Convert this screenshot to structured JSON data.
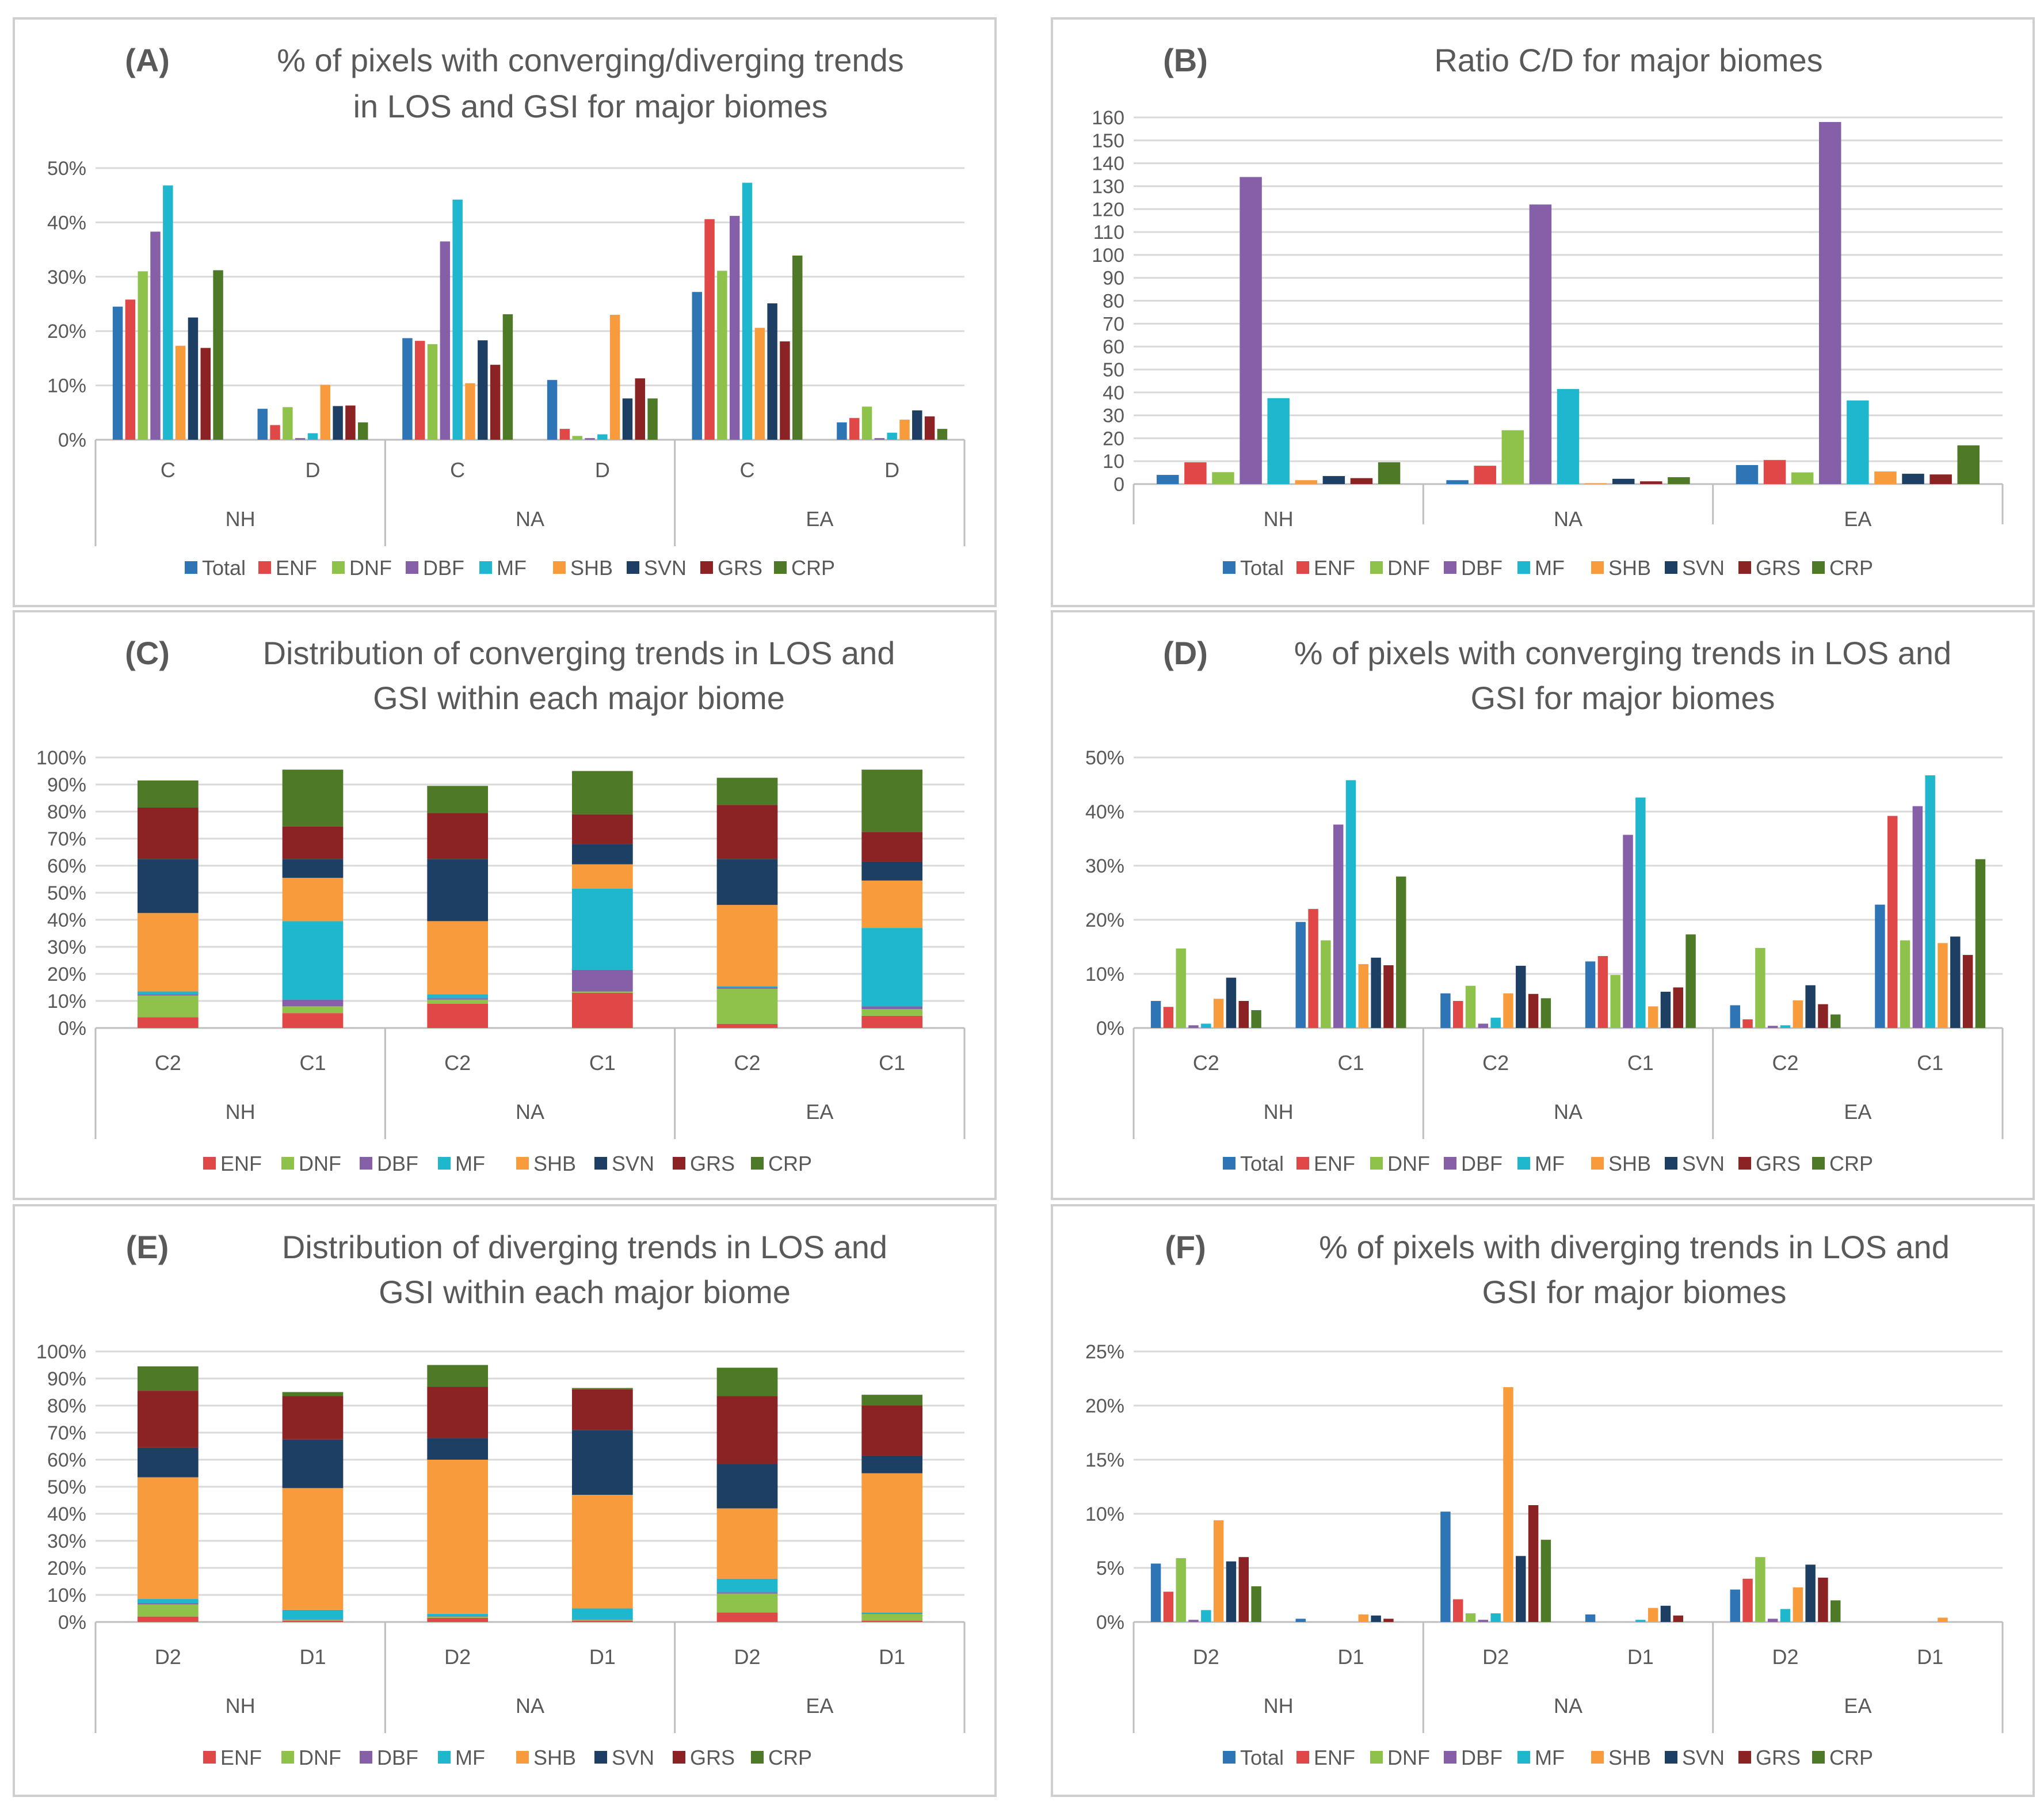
{
  "colors": {
    "Total": "#2e75b6",
    "ENF": "#e04848",
    "DNF": "#8ec24b",
    "DBF": "#8560a8",
    "MF": "#1fb7cd",
    "SHB": "#f79b3c",
    "SVN": "#1d3f63",
    "GRS": "#8b2324",
    "CRP": "#4e7a28"
  },
  "chart_data": [
    {
      "panel": "A",
      "type": "bar",
      "title_letter": "(A)",
      "title_lines": [
        "% of pixels with converging/diverging trends",
        "in LOS and GSI for major biomes"
      ],
      "ylim": [
        0,
        50
      ],
      "yticks": [
        0,
        10,
        20,
        30,
        40,
        50
      ],
      "tick_suffix": "%",
      "groups": [
        "NH",
        "NA",
        "EA"
      ],
      "subgroups": [
        "C",
        "D"
      ],
      "series_names": [
        "Total",
        "ENF",
        "DNF",
        "DBF",
        "MF",
        "SHB",
        "SVN",
        "GRS",
        "CRP"
      ],
      "values": [
        [
          24.5,
          25.8,
          31,
          38.3,
          46.8,
          17.3,
          22.5,
          16.9,
          31.2
        ],
        [
          5.7,
          2.7,
          6,
          0.3,
          1.2,
          10.1,
          6.2,
          6.3,
          3.2
        ],
        [
          18.7,
          18.2,
          17.6,
          36.5,
          44.2,
          10.4,
          18.3,
          13.8,
          23.1
        ],
        [
          11,
          2,
          0.7,
          0.3,
          1,
          23,
          7.6,
          11.3,
          7.6
        ],
        [
          27.2,
          40.6,
          31.1,
          41.2,
          47.3,
          20.6,
          25.1,
          18.1,
          33.9
        ],
        [
          3.2,
          4,
          6.1,
          0.3,
          1.3,
          3.7,
          5.4,
          4.3,
          2
        ]
      ]
    },
    {
      "panel": "B",
      "type": "bar",
      "title_letter": "(B)",
      "title_lines": [
        "Ratio C/D for major biomes"
      ],
      "ylim": [
        0,
        160
      ],
      "yticks": [
        0,
        10,
        20,
        30,
        40,
        50,
        60,
        70,
        80,
        90,
        100,
        110,
        120,
        130,
        140,
        150,
        160
      ],
      "tick_suffix": "",
      "groups": [
        "NH",
        "NA",
        "EA"
      ],
      "subgroups": [
        ""
      ],
      "series_names": [
        "Total",
        "ENF",
        "DNF",
        "DBF",
        "MF",
        "SHB",
        "SVN",
        "GRS",
        "CRP"
      ],
      "values": [
        [
          4,
          9.5,
          5.2,
          134,
          37.5,
          1.7,
          3.5,
          2.6,
          9.5
        ],
        [
          1.7,
          8,
          23.5,
          122,
          41.5,
          0.4,
          2.3,
          1.2,
          3
        ],
        [
          8.3,
          10.5,
          5.1,
          158,
          36.5,
          5.5,
          4.5,
          4.2,
          16.9
        ]
      ]
    },
    {
      "panel": "C",
      "type": "stacked-bar",
      "title_letter": "(C)",
      "title_lines": [
        "Distribution of converging trends in LOS and",
        "GSI within each major biome"
      ],
      "ylim": [
        0,
        100
      ],
      "yticks": [
        0,
        10,
        20,
        30,
        40,
        50,
        60,
        70,
        80,
        90,
        100
      ],
      "tick_suffix": "%",
      "groups": [
        "NH",
        "NA",
        "EA"
      ],
      "subgroups": [
        "C2",
        "C1"
      ],
      "series_names": [
        "ENF",
        "DNF",
        "DBF",
        "MF",
        "SHB",
        "SVN",
        "GRS",
        "CRP"
      ],
      "values": [
        [
          4,
          8,
          0.5,
          1,
          29,
          20,
          19,
          10
        ],
        [
          5.5,
          2.5,
          2.5,
          29,
          16,
          7,
          12,
          21
        ],
        [
          9,
          1.5,
          0.5,
          1.5,
          27,
          23,
          17,
          10
        ],
        [
          13,
          0.5,
          8,
          30,
          9,
          7.5,
          11,
          16
        ],
        [
          1.5,
          13,
          0.5,
          0.5,
          30,
          17,
          20,
          10
        ],
        [
          4.5,
          2.5,
          1,
          29,
          17.5,
          7,
          11,
          23
        ]
      ]
    },
    {
      "panel": "D",
      "type": "bar",
      "title_letter": "(D)",
      "title_lines": [
        "% of pixels with converging trends in LOS and",
        "GSI for major biomes"
      ],
      "ylim": [
        0,
        50
      ],
      "yticks": [
        0,
        10,
        20,
        30,
        40,
        50
      ],
      "tick_suffix": "%",
      "groups": [
        "NH",
        "NA",
        "EA"
      ],
      "subgroups": [
        "C2",
        "C1"
      ],
      "series_names": [
        "Total",
        "ENF",
        "DNF",
        "DBF",
        "MF",
        "SHB",
        "SVN",
        "GRS",
        "CRP"
      ],
      "values": [
        [
          5,
          3.9,
          14.7,
          0.5,
          0.8,
          5.4,
          9.3,
          5,
          3.3
        ],
        [
          19.6,
          22,
          16.2,
          37.6,
          45.8,
          11.8,
          13,
          11.6,
          28
        ],
        [
          6.4,
          5,
          7.8,
          0.8,
          1.9,
          6.4,
          11.5,
          6.3,
          5.5
        ],
        [
          12.3,
          13.3,
          9.8,
          35.7,
          42.6,
          4,
          6.7,
          7.5,
          17.3
        ],
        [
          4.2,
          1.6,
          14.8,
          0.4,
          0.5,
          5.1,
          7.9,
          4.4,
          2.5
        ],
        [
          22.8,
          39.2,
          16.2,
          41,
          46.7,
          15.7,
          16.9,
          13.5,
          31.2
        ]
      ]
    },
    {
      "panel": "E",
      "type": "stacked-bar",
      "title_letter": "(E)",
      "title_lines": [
        "Distribution of diverging trends in LOS and",
        "GSI within each major biome"
      ],
      "ylim": [
        0,
        100
      ],
      "yticks": [
        0,
        10,
        20,
        30,
        40,
        50,
        60,
        70,
        80,
        90,
        100
      ],
      "tick_suffix": "%",
      "groups": [
        "NH",
        "NA",
        "EA"
      ],
      "subgroups": [
        "D2",
        "D1"
      ],
      "series_names": [
        "ENF",
        "DNF",
        "DBF",
        "MF",
        "SHB",
        "SVN",
        "GRS",
        "CRP"
      ],
      "values": [
        [
          2,
          4.5,
          0.5,
          1.5,
          45,
          11,
          21,
          9
        ],
        [
          0.5,
          0.3,
          0.2,
          3.5,
          45,
          18,
          16,
          1.5
        ],
        [
          1.5,
          0.5,
          0.3,
          0.7,
          57,
          8,
          19,
          8
        ],
        [
          0.5,
          0.3,
          0.2,
          4,
          42,
          24,
          15,
          0.5
        ],
        [
          3.5,
          7,
          0.5,
          5,
          26,
          16.5,
          25,
          10.5
        ],
        [
          0.5,
          2.5,
          0.2,
          0.3,
          51.5,
          6.5,
          18.5,
          4
        ]
      ]
    },
    {
      "panel": "F",
      "type": "bar",
      "title_letter": "(F)",
      "title_lines": [
        "% of pixels with diverging trends in LOS and",
        "GSI for major biomes"
      ],
      "ylim": [
        0,
        25
      ],
      "yticks": [
        0,
        5,
        10,
        15,
        20,
        25
      ],
      "tick_suffix": "%",
      "groups": [
        "NH",
        "NA",
        "EA"
      ],
      "subgroups": [
        "D2",
        "D1"
      ],
      "series_names": [
        "Total",
        "ENF",
        "DNF",
        "DBF",
        "MF",
        "SHB",
        "SVN",
        "GRS",
        "CRP"
      ],
      "values": [
        [
          5.4,
          2.8,
          5.9,
          0.2,
          1.1,
          9.4,
          5.6,
          6,
          3.3
        ],
        [
          0.3,
          0,
          0,
          0,
          0,
          0.7,
          0.6,
          0.3,
          0
        ],
        [
          10.2,
          2.1,
          0.8,
          0.2,
          0.8,
          21.7,
          6.1,
          10.8,
          7.6
        ],
        [
          0.7,
          0,
          0,
          0,
          0.2,
          1.3,
          1.5,
          0.6,
          0
        ],
        [
          3,
          4,
          6,
          0.3,
          1.2,
          3.2,
          5.3,
          4.1,
          2
        ],
        [
          0,
          0,
          0,
          0,
          0,
          0.4,
          0,
          0,
          0
        ]
      ]
    }
  ]
}
